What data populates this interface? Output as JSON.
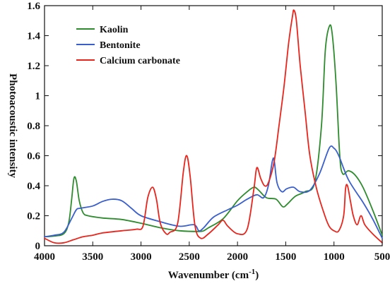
{
  "chart_data": {
    "type": "line",
    "title": "",
    "xlabel": "Wavenumber (cm",
    "xlabel_sup": "-1",
    "xlabel_close": ")",
    "ylabel": "Photoacoustic intensity",
    "xlim": [
      4000,
      500
    ],
    "ylim": [
      0,
      1.6
    ],
    "x_reversed": true,
    "x_ticks": [
      "4000",
      "3500",
      "3000",
      "2500",
      "2000",
      "1500",
      "1000",
      "500"
    ],
    "x_tick_values": [
      4000,
      3500,
      3000,
      2500,
      2000,
      1500,
      1000,
      500
    ],
    "y_ticks": [
      "0",
      "0.2",
      "0.4",
      "0.6",
      "0.8",
      "1",
      "1.2",
      "1.4",
      "1.6"
    ],
    "y_tick_values": [
      0,
      0.2,
      0.4,
      0.6,
      0.8,
      1,
      1.2,
      1.4,
      1.6
    ],
    "grid": false,
    "legend_position": "top-left",
    "series": [
      {
        "name": "Kaolin",
        "color": "#2e8b2e",
        "points": [
          [
            4000,
            0.06
          ],
          [
            3900,
            0.065
          ],
          [
            3800,
            0.08
          ],
          [
            3750,
            0.15
          ],
          [
            3720,
            0.3
          ],
          [
            3695,
            0.45
          ],
          [
            3670,
            0.43
          ],
          [
            3640,
            0.3
          ],
          [
            3600,
            0.22
          ],
          [
            3550,
            0.2
          ],
          [
            3400,
            0.185
          ],
          [
            3200,
            0.175
          ],
          [
            3000,
            0.15
          ],
          [
            2800,
            0.12
          ],
          [
            2600,
            0.1
          ],
          [
            2400,
            0.095
          ],
          [
            2350,
            0.1
          ],
          [
            2300,
            0.12
          ],
          [
            2150,
            0.18
          ],
          [
            2000,
            0.3
          ],
          [
            1900,
            0.36
          ],
          [
            1830,
            0.39
          ],
          [
            1780,
            0.37
          ],
          [
            1700,
            0.32
          ],
          [
            1600,
            0.31
          ],
          [
            1530,
            0.26
          ],
          [
            1480,
            0.28
          ],
          [
            1400,
            0.33
          ],
          [
            1300,
            0.36
          ],
          [
            1200,
            0.42
          ],
          [
            1130,
            0.8
          ],
          [
            1090,
            1.3
          ],
          [
            1050,
            1.46
          ],
          [
            1020,
            1.42
          ],
          [
            980,
            1.1
          ],
          [
            940,
            0.6
          ],
          [
            910,
            0.48
          ],
          [
            850,
            0.5
          ],
          [
            780,
            0.47
          ],
          [
            700,
            0.39
          ],
          [
            600,
            0.24
          ],
          [
            500,
            0.07
          ]
        ]
      },
      {
        "name": "Bentonite",
        "color": "#3a5fcd",
        "points": [
          [
            4000,
            0.06
          ],
          [
            3900,
            0.07
          ],
          [
            3800,
            0.09
          ],
          [
            3720,
            0.18
          ],
          [
            3670,
            0.24
          ],
          [
            3630,
            0.25
          ],
          [
            3500,
            0.265
          ],
          [
            3400,
            0.295
          ],
          [
            3300,
            0.31
          ],
          [
            3200,
            0.3
          ],
          [
            3100,
            0.25
          ],
          [
            3000,
            0.2
          ],
          [
            2800,
            0.16
          ],
          [
            2600,
            0.13
          ],
          [
            2450,
            0.14
          ],
          [
            2400,
            0.1
          ],
          [
            2350,
            0.12
          ],
          [
            2250,
            0.19
          ],
          [
            2100,
            0.24
          ],
          [
            2000,
            0.27
          ],
          [
            1900,
            0.31
          ],
          [
            1800,
            0.34
          ],
          [
            1730,
            0.32
          ],
          [
            1680,
            0.4
          ],
          [
            1640,
            0.56
          ],
          [
            1620,
            0.57
          ],
          [
            1590,
            0.42
          ],
          [
            1540,
            0.36
          ],
          [
            1490,
            0.38
          ],
          [
            1420,
            0.39
          ],
          [
            1350,
            0.36
          ],
          [
            1250,
            0.37
          ],
          [
            1150,
            0.48
          ],
          [
            1050,
            0.65
          ],
          [
            1000,
            0.65
          ],
          [
            950,
            0.6
          ],
          [
            850,
            0.44
          ],
          [
            700,
            0.29
          ],
          [
            600,
            0.18
          ],
          [
            500,
            0.05
          ]
        ]
      },
      {
        "name": "Calcium carbonate",
        "color": "#e8251c",
        "points": [
          [
            4000,
            0.05
          ],
          [
            3900,
            0.02
          ],
          [
            3800,
            0.02
          ],
          [
            3700,
            0.04
          ],
          [
            3600,
            0.06
          ],
          [
            3500,
            0.07
          ],
          [
            3400,
            0.085
          ],
          [
            3200,
            0.1
          ],
          [
            3050,
            0.11
          ],
          [
            2980,
            0.13
          ],
          [
            2930,
            0.32
          ],
          [
            2880,
            0.39
          ],
          [
            2840,
            0.31
          ],
          [
            2800,
            0.15
          ],
          [
            2740,
            0.08
          ],
          [
            2700,
            0.09
          ],
          [
            2620,
            0.15
          ],
          [
            2560,
            0.5
          ],
          [
            2525,
            0.6
          ],
          [
            2490,
            0.46
          ],
          [
            2440,
            0.13
          ],
          [
            2380,
            0.05
          ],
          [
            2300,
            0.08
          ],
          [
            2200,
            0.14
          ],
          [
            2150,
            0.17
          ],
          [
            2100,
            0.13
          ],
          [
            2000,
            0.08
          ],
          [
            1900,
            0.11
          ],
          [
            1830,
            0.38
          ],
          [
            1800,
            0.52
          ],
          [
            1760,
            0.45
          ],
          [
            1720,
            0.4
          ],
          [
            1680,
            0.42
          ],
          [
            1620,
            0.56
          ],
          [
            1570,
            0.8
          ],
          [
            1520,
            1.05
          ],
          [
            1470,
            1.35
          ],
          [
            1430,
            1.53
          ],
          [
            1415,
            1.57
          ],
          [
            1390,
            1.5
          ],
          [
            1350,
            1.2
          ],
          [
            1300,
            0.9
          ],
          [
            1250,
            0.6
          ],
          [
            1180,
            0.38
          ],
          [
            1100,
            0.21
          ],
          [
            1050,
            0.13
          ],
          [
            1000,
            0.1
          ],
          [
            950,
            0.1
          ],
          [
            900,
            0.2
          ],
          [
            880,
            0.38
          ],
          [
            860,
            0.4
          ],
          [
            830,
            0.3
          ],
          [
            800,
            0.2
          ],
          [
            760,
            0.14
          ],
          [
            720,
            0.2
          ],
          [
            680,
            0.14
          ],
          [
            600,
            0.08
          ],
          [
            500,
            0.02
          ]
        ]
      }
    ]
  }
}
